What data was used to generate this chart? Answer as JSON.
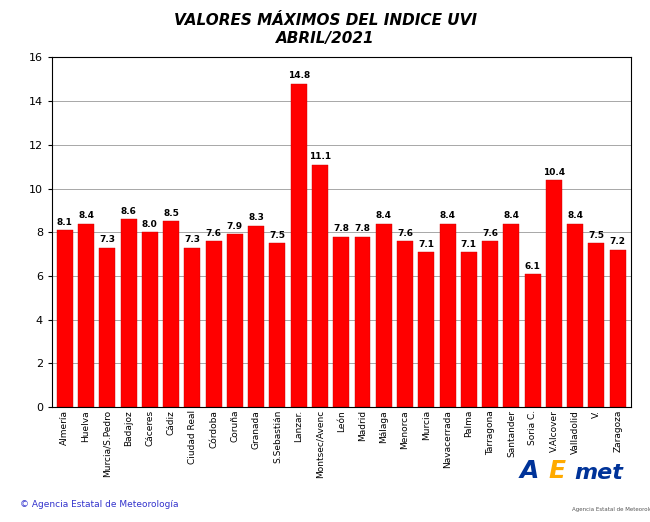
{
  "title_line1": "VALORES MÁXIMOS DEL INDICE UVI",
  "title_line2": "ABRIL/2021",
  "categories": [
    "Almería",
    "Huelva",
    "Murcia/S.Pedro",
    "Badajoz",
    "Cáceres",
    "Cádiz",
    "Ciudad Real",
    "Córdoba",
    "Coruña",
    "Granada",
    "S.Sebastián",
    "Lanzar.",
    "Montsec/Avenc",
    "León",
    "Madrid",
    "Málaga",
    "Menorca",
    "Murcia",
    "Navacerrada",
    "Palma",
    "Tarragona",
    "Santander",
    "Soria C.",
    "V.Alcover",
    "Valladolid",
    "V.",
    "Zaragoza"
  ],
  "values": [
    8.1,
    8.4,
    7.3,
    8.6,
    8.0,
    8.5,
    7.3,
    7.6,
    7.9,
    8.3,
    7.5,
    14.8,
    11.1,
    7.8,
    7.8,
    8.4,
    7.6,
    7.1,
    8.4,
    7.1,
    7.6,
    8.4,
    6.1,
    10.4,
    8.4,
    7.5,
    7.2
  ],
  "bar_color": "#ff0000",
  "ylim": [
    0.0,
    16.0
  ],
  "yticks": [
    0.0,
    2.0,
    4.0,
    6.0,
    8.0,
    10.0,
    12.0,
    14.0,
    16.0
  ],
  "background_color": "#ffffff",
  "grid_color": "#999999",
  "copyright_text": "© Agencia Estatal de Meteorología",
  "title_fontsize": 11,
  "label_fontsize": 6.5,
  "value_fontsize": 6.5,
  "ytick_fontsize": 8
}
